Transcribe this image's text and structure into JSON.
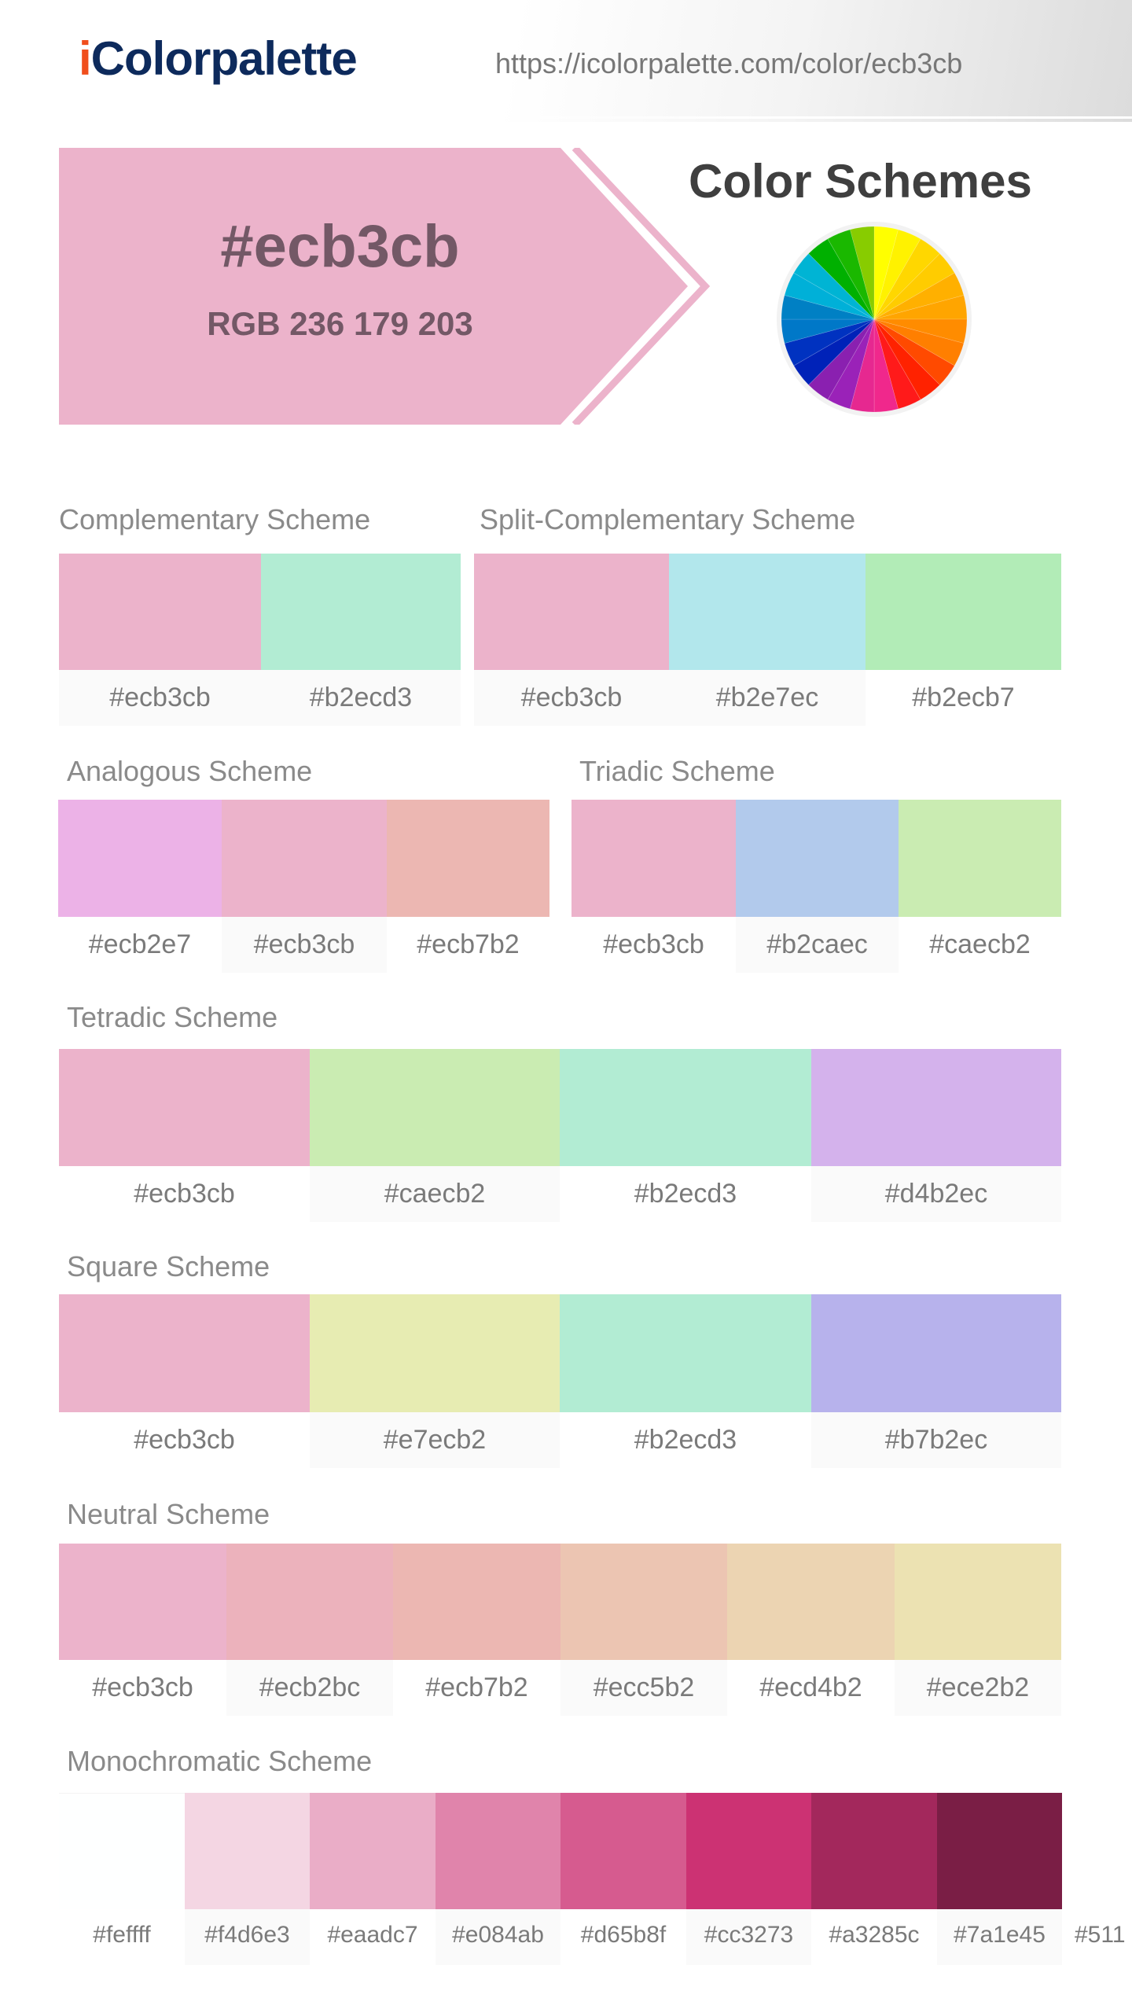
{
  "header": {
    "logo_i": "i",
    "logo_rest": "Colorpalette",
    "url": "https://icolorpalette.com/color/ecb3cb"
  },
  "color": {
    "hex_label": "#ecb3cb",
    "rgb_label": "RGB 236 179 203",
    "value": "#ecb3cb"
  },
  "color_schemes_title": "Color Schemes",
  "wheel_colors": [
    "#ffff00",
    "#fff200",
    "#ffd700",
    "#ffcc00",
    "#ffb000",
    "#ffa500",
    "#ff8c00",
    "#ff7f00",
    "#ff4a00",
    "#ff2200",
    "#ff1a1a",
    "#f0288c",
    "#e62890",
    "#9a22b8",
    "#8a20b0",
    "#0022b8",
    "#0032c0",
    "#0078c8",
    "#0080c4",
    "#00b0d8",
    "#00b4d4",
    "#00b000",
    "#1ab800",
    "#88cc00"
  ],
  "schemes": [
    {
      "id": "complementary",
      "title": "Complementary Scheme",
      "colors": [
        "#ecb3cb",
        "#b2ecd3"
      ]
    },
    {
      "id": "split-complementary",
      "title": "Split-Complementary Scheme",
      "colors": [
        "#ecb3cb",
        "#b2e7ec",
        "#b2ecb7"
      ]
    },
    {
      "id": "analogous",
      "title": "Analogous Scheme",
      "colors": [
        "#ecb2e7",
        "#ecb3cb",
        "#ecb7b2"
      ]
    },
    {
      "id": "triadic",
      "title": "Triadic Scheme",
      "colors": [
        "#ecb3cb",
        "#b2caec",
        "#caecb2"
      ]
    },
    {
      "id": "tetradic",
      "title": "Tetradic Scheme",
      "colors": [
        "#ecb3cb",
        "#caecb2",
        "#b2ecd3",
        "#d4b2ec"
      ]
    },
    {
      "id": "square",
      "title": "Square Scheme",
      "colors": [
        "#ecb3cb",
        "#e7ecb2",
        "#b2ecd3",
        "#b7b2ec"
      ]
    },
    {
      "id": "neutral",
      "title": "Neutral Scheme",
      "colors": [
        "#ecb3cb",
        "#ecb2bc",
        "#ecb7b2",
        "#ecc5b2",
        "#ecd4b2",
        "#ece2b2"
      ]
    },
    {
      "id": "monochromatic",
      "title": "Monochromatic Scheme",
      "colors": [
        "#feffff",
        "#f4d6e3",
        "#eaadc7",
        "#e084ab",
        "#d65b8f",
        "#cc3273",
        "#a3285c",
        "#7a1e45",
        "#511"
      ]
    }
  ]
}
